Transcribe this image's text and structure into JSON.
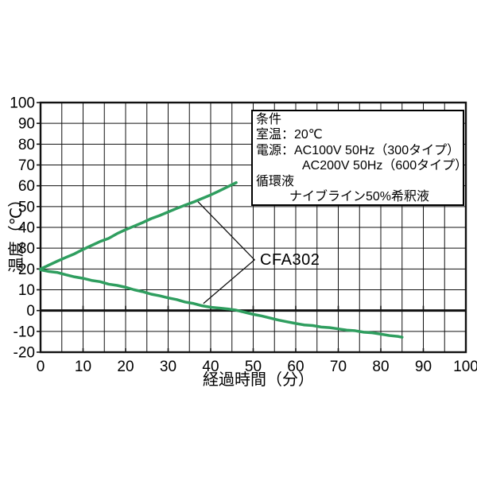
{
  "figure": {
    "background": "#ffffff",
    "curve_color": "#2f9e5f",
    "axis_color": "#111111"
  },
  "chart_data": {
    "type": "line",
    "title": "",
    "xlabel": "経過時間（分）",
    "ylabel": "温度（℃）",
    "xlim": [
      0,
      100
    ],
    "ylim": [
      -20,
      100
    ],
    "x_tick_step": 10,
    "y_tick_step": 10,
    "x_grid_step": 5,
    "y_grid_step": 10,
    "grid": true,
    "zero_line_bold": true,
    "legend_position": "none",
    "series": [
      {
        "name": "heating",
        "color": "#2f9e5f",
        "x": [
          0,
          2,
          4,
          6,
          8,
          10,
          12,
          14,
          16,
          18,
          20,
          22,
          24,
          26,
          28,
          30,
          32,
          34,
          36,
          38,
          40,
          42,
          44,
          46
        ],
        "y": [
          20.0,
          21.9,
          23.8,
          25.6,
          27.3,
          29.4,
          31.3,
          33.2,
          34.7,
          37.0,
          38.9,
          40.6,
          42.3,
          44.2,
          45.7,
          47.4,
          49.1,
          50.7,
          52.2,
          53.9,
          55.6,
          57.5,
          59.5,
          61.5
        ]
      },
      {
        "name": "cooling",
        "color": "#2f9e5f",
        "x": [
          0,
          2,
          4,
          6,
          8,
          10,
          12,
          14,
          16,
          18,
          20,
          22,
          24,
          26,
          28,
          30,
          32,
          34,
          36,
          38,
          40,
          42,
          44,
          46,
          48,
          50,
          52,
          54,
          56,
          58,
          60,
          62,
          64,
          66,
          68,
          70,
          72,
          74,
          76,
          78,
          80,
          82,
          84,
          85
        ],
        "y": [
          19.6,
          18.8,
          18.3,
          17.2,
          16.2,
          15.5,
          14.5,
          13.9,
          12.7,
          12.1,
          11.2,
          10.0,
          9.1,
          7.9,
          7.1,
          6.1,
          5.3,
          4.1,
          3.4,
          2.3,
          1.6,
          1.2,
          0.8,
          0.2,
          -0.8,
          -1.8,
          -2.6,
          -3.6,
          -4.6,
          -5.4,
          -6.2,
          -6.9,
          -7.2,
          -7.9,
          -8.2,
          -8.8,
          -9.4,
          -9.7,
          -10.4,
          -10.7,
          -11.3,
          -12.0,
          -12.4,
          -12.8
        ]
      }
    ],
    "annotation": {
      "label": "CFA302",
      "vertex_xy": [
        50.3,
        24.4
      ],
      "upper_end_xy": [
        36.9,
        52.6
      ],
      "lower_end_xy": [
        38.3,
        3.4
      ],
      "label_xy": [
        51.6,
        24.4
      ]
    }
  },
  "condition_box": {
    "lines": [
      {
        "text": "条件",
        "indent": 0
      },
      {
        "text": "室温：20℃",
        "indent": 0
      },
      {
        "text": "電源：AC100V 50Hz（300タイプ）",
        "indent": 0
      },
      {
        "text": "AC200V 50Hz（600タイプ）",
        "indent": 58
      },
      {
        "text": "循環液",
        "indent": 0
      },
      {
        "text": "ナイブライン50%希釈液",
        "indent": 42
      }
    ]
  }
}
